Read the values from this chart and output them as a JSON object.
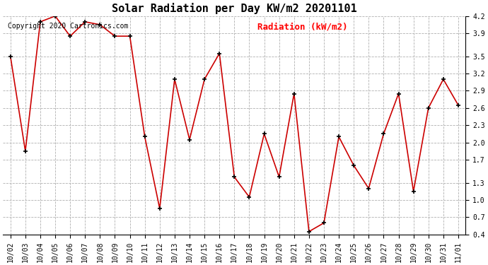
{
  "title": "Solar Radiation per Day KW/m2 20201101",
  "copyright": "Copyright 2020 Cartronics.com",
  "legend_label": "Radiation (kW/m2)",
  "dates": [
    "10/02",
    "10/03",
    "10/04",
    "10/05",
    "10/06",
    "10/07",
    "10/08",
    "10/09",
    "10/10",
    "10/11",
    "10/12",
    "10/13",
    "10/14",
    "10/15",
    "10/16",
    "10/17",
    "10/18",
    "10/19",
    "10/20",
    "10/21",
    "10/22",
    "10/23",
    "10/24",
    "10/25",
    "10/26",
    "10/27",
    "10/28",
    "10/29",
    "10/30",
    "10/31",
    "11/01"
  ],
  "values": [
    3.5,
    1.85,
    4.1,
    4.2,
    3.85,
    4.1,
    4.05,
    3.85,
    3.85,
    2.1,
    0.85,
    3.1,
    2.05,
    3.1,
    3.55,
    1.4,
    1.05,
    2.15,
    1.4,
    2.85,
    0.45,
    0.6,
    2.1,
    1.6,
    1.2,
    2.15,
    2.85,
    1.15,
    2.6,
    3.1,
    2.65
  ],
  "line_color": "#cc0000",
  "marker_color": "#000000",
  "bg_color": "#ffffff",
  "grid_color": "#b0b0b0",
  "ylim": [
    0.4,
    4.2
  ],
  "yticks": [
    0.4,
    0.7,
    1.0,
    1.3,
    1.7,
    2.0,
    2.3,
    2.6,
    2.9,
    3.2,
    3.5,
    3.9,
    4.2
  ],
  "title_fontsize": 11,
  "legend_fontsize": 9,
  "copyright_fontsize": 7,
  "tick_fontsize": 7
}
